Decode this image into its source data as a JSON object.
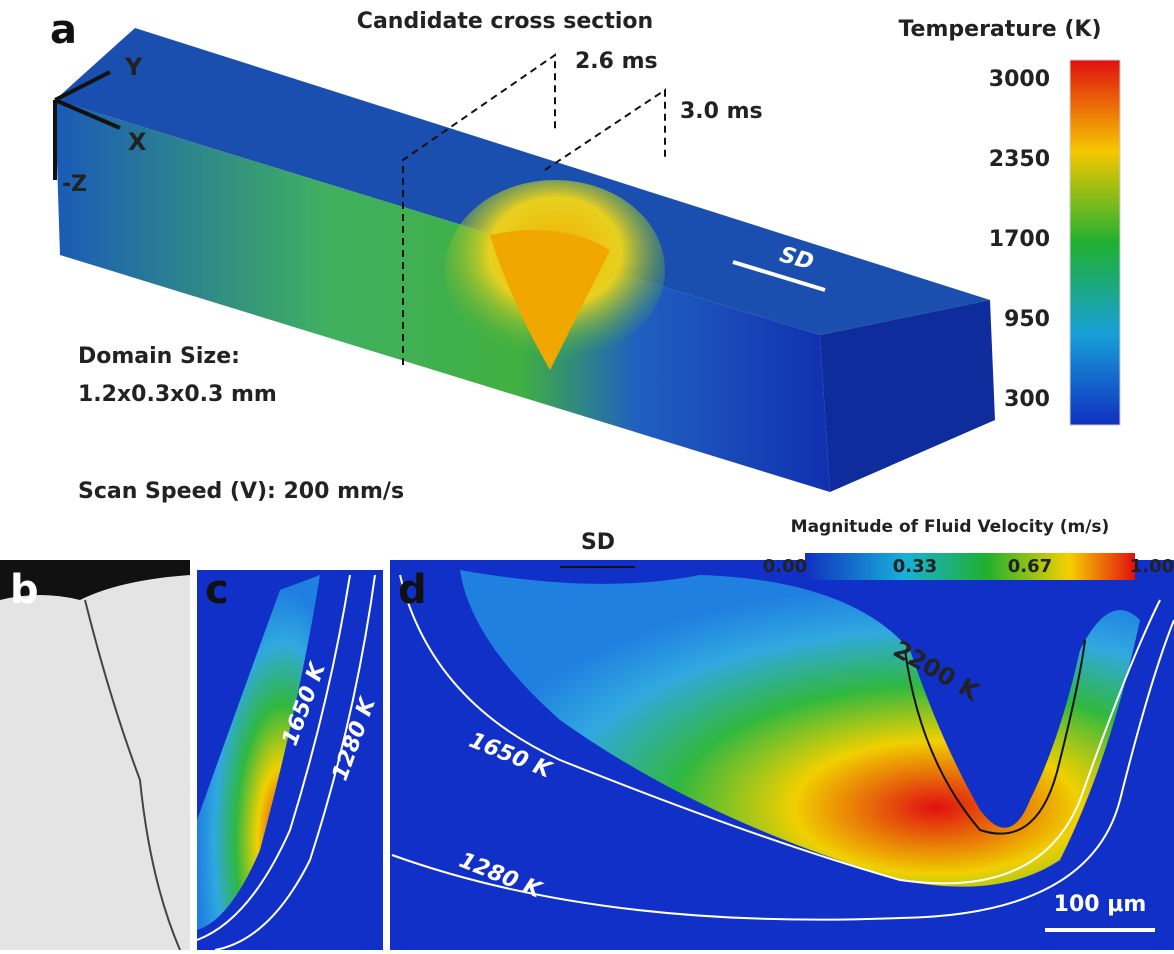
{
  "panel_a": {
    "label": "a",
    "title": "Candidate cross section",
    "times": [
      "2.6 ms",
      "3.0 ms"
    ],
    "axes": [
      "Y",
      "X",
      "-Z"
    ],
    "direction": "SD",
    "domain_size": [
      "Domain Size:",
      "1.2x0.3x0.3 mm"
    ],
    "scan_speed": "Scan Speed (V): 200 mm/s",
    "colorbar": {
      "title": "Temperature (K)",
      "ticks": [
        "3000",
        "2350",
        "1700",
        "950",
        "300"
      ]
    }
  },
  "panel_b": {
    "label": "b"
  },
  "panel_c": {
    "label": "c",
    "isotherms": [
      "1650 K",
      "1280 K"
    ]
  },
  "panel_d": {
    "label": "d",
    "direction": "SD",
    "colorbar": {
      "title": "Magnitude of Fluid Velocity (m/s)",
      "ticks": [
        "0.00",
        "0.33",
        "0.67",
        "1.00"
      ]
    },
    "isotherms": [
      "2200 K",
      "1650 K",
      "1280 K"
    ],
    "scale_bar": "100 μm"
  }
}
